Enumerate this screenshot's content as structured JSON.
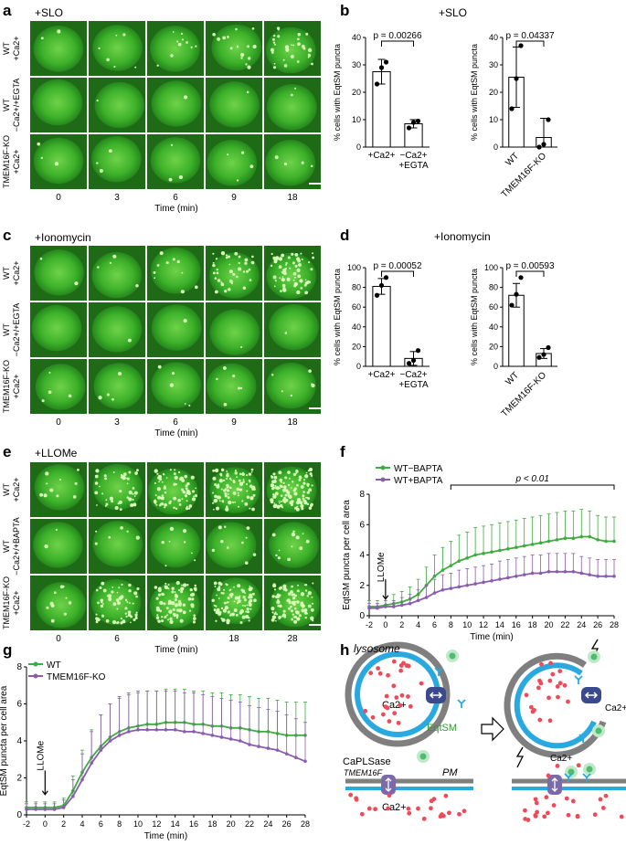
{
  "panels": {
    "a": {
      "letter": "a",
      "condition": "+SLO",
      "rows": [
        "WT\n+Ca2+",
        "WT\n−Ca2+/+EGTA",
        "TMEM16F-KO\n+Ca2+"
      ],
      "timepoints": [
        "0",
        "3",
        "6",
        "9",
        "18"
      ],
      "xlabel": "Time (min)"
    },
    "b": {
      "letter": "b",
      "condition": "+SLO"
    },
    "c": {
      "letter": "c",
      "condition": "+Ionomycin",
      "rows": [
        "WT\n+Ca2+",
        "WT\n−Ca2+/+EGTA",
        "TMEM16F-KO\n+Ca2+"
      ],
      "timepoints": [
        "0",
        "3",
        "6",
        "9",
        "18"
      ],
      "xlabel": "Time (min)"
    },
    "d": {
      "letter": "d",
      "condition": "+Ionomycin"
    },
    "e": {
      "letter": "e",
      "condition": "+LLOMe",
      "rows": [
        "WT\n+Ca2+",
        "WT\n−Ca2+/+BAPTA",
        "TMEM16F-KO\n+Ca2+"
      ],
      "timepoints": [
        "0",
        "6",
        "9",
        "18",
        "28"
      ],
      "xlabel": "Time (min)"
    },
    "f": {
      "letter": "f"
    },
    "g": {
      "letter": "g"
    },
    "h": {
      "letter": "h",
      "lysosome": "lysosome",
      "ca": "Ca2+",
      "eqtsm": "EqtSM",
      "caplsase": "CaPLSase",
      "tmem16f": "TMEM16F",
      "pm": "PM"
    }
  },
  "chart_data": [
    {
      "id": "b-left",
      "type": "bar",
      "ylabel": "% cells with EqtSM puncta",
      "categories": [
        "+Ca2+",
        "−Ca2+\n+EGTA"
      ],
      "values": [
        27.5,
        8.5
      ],
      "errors": [
        4.5,
        1.5
      ],
      "points": [
        [
          23,
          29,
          31
        ],
        [
          7,
          9,
          9.5
        ]
      ],
      "ylim": [
        0,
        40
      ],
      "yticks": [
        0,
        10,
        20,
        30,
        40
      ],
      "pvalue": "p = 0.00266"
    },
    {
      "id": "b-right",
      "type": "bar",
      "ylabel": "% cells with EqtSM puncta",
      "categories": [
        "WT",
        "TMEM16F-KO"
      ],
      "values": [
        25.5,
        3.5
      ],
      "errors": [
        11,
        7
      ],
      "points": [
        [
          14,
          25,
          37
        ],
        [
          0,
          1,
          10
        ]
      ],
      "ylim": [
        0,
        40
      ],
      "yticks": [
        0,
        10,
        20,
        30,
        40
      ],
      "pvalue": "p = 0.04337"
    },
    {
      "id": "d-left",
      "type": "bar",
      "ylabel": "% cells with EqtSM puncta",
      "categories": [
        "+Ca2+",
        "−Ca2+\n+EGTA"
      ],
      "values": [
        81,
        8
      ],
      "errors": [
        8,
        7
      ],
      "points": [
        [
          72,
          82,
          90
        ],
        [
          3,
          6,
          16
        ]
      ],
      "ylim": [
        0,
        100
      ],
      "yticks": [
        0,
        20,
        40,
        60,
        80,
        100
      ],
      "pvalue": "p = 0.00052"
    },
    {
      "id": "d-right",
      "type": "bar",
      "ylabel": "% cells with EqtSM puncta",
      "categories": [
        "WT",
        "TMEM16F-KO"
      ],
      "values": [
        72,
        13
      ],
      "errors": [
        12,
        5
      ],
      "points": [
        [
          62,
          73,
          90
        ],
        [
          9,
          12,
          19
        ]
      ],
      "ylim": [
        0,
        100
      ],
      "yticks": [
        0,
        20,
        40,
        60,
        80,
        100
      ],
      "pvalue": "p = 0.00593"
    },
    {
      "id": "f",
      "type": "line",
      "xlabel": "Time (min)",
      "ylabel": "EqtSM puncta per cell area",
      "xlim": [
        -2,
        28
      ],
      "ylim": [
        0,
        8
      ],
      "xticks": [
        -2,
        0,
        2,
        4,
        6,
        8,
        10,
        12,
        14,
        16,
        18,
        20,
        22,
        24,
        26,
        28
      ],
      "yticks": [
        0,
        2,
        4,
        6,
        8
      ],
      "annotation": "LLOMe",
      "sig": "p < 0.01",
      "sig_range": [
        8,
        28
      ],
      "series": [
        {
          "name": "WT−BAPTA",
          "color": "#3faa3f",
          "x": [
            -2,
            -1,
            0,
            1,
            2,
            3,
            4,
            5,
            6,
            7,
            8,
            9,
            10,
            11,
            12,
            13,
            14,
            15,
            16,
            17,
            18,
            19,
            20,
            21,
            22,
            23,
            24,
            25,
            26,
            27,
            28
          ],
          "y": [
            0.6,
            0.6,
            0.7,
            0.8,
            0.9,
            1.1,
            1.4,
            2.0,
            2.6,
            3.0,
            3.3,
            3.6,
            3.8,
            4.0,
            4.1,
            4.2,
            4.3,
            4.4,
            4.5,
            4.6,
            4.7,
            4.8,
            4.9,
            5.0,
            5.1,
            5.1,
            5.2,
            5.2,
            5.0,
            4.9,
            4.9
          ],
          "err": [
            0.4,
            0.4,
            0.5,
            0.6,
            0.7,
            0.8,
            1.0,
            1.2,
            1.4,
            1.5,
            1.6,
            1.7,
            1.7,
            1.8,
            1.8,
            1.8,
            1.8,
            1.8,
            1.8,
            1.8,
            1.8,
            1.8,
            1.8,
            1.8,
            1.8,
            1.8,
            1.8,
            1.7,
            1.6,
            1.6,
            1.6
          ]
        },
        {
          "name": "WT+BAPTA",
          "color": "#8a5cb0",
          "x": [
            -2,
            -1,
            0,
            1,
            2,
            3,
            4,
            5,
            6,
            7,
            8,
            9,
            10,
            11,
            12,
            13,
            14,
            15,
            16,
            17,
            18,
            19,
            20,
            21,
            22,
            23,
            24,
            25,
            26,
            27,
            28
          ],
          "y": [
            0.5,
            0.5,
            0.6,
            0.6,
            0.7,
            0.8,
            1.0,
            1.2,
            1.5,
            1.7,
            1.8,
            1.9,
            2.0,
            2.1,
            2.2,
            2.3,
            2.4,
            2.5,
            2.6,
            2.7,
            2.8,
            2.8,
            2.9,
            2.9,
            2.9,
            2.9,
            2.8,
            2.7,
            2.6,
            2.6,
            2.6
          ],
          "err": [
            0.3,
            0.3,
            0.4,
            0.4,
            0.5,
            0.6,
            0.7,
            0.8,
            0.9,
            1.0,
            1.0,
            1.1,
            1.1,
            1.1,
            1.1,
            1.1,
            1.2,
            1.2,
            1.2,
            1.2,
            1.2,
            1.2,
            1.2,
            1.2,
            1.2,
            1.2,
            1.1,
            1.1,
            1.1,
            1.1,
            1.1
          ]
        }
      ]
    },
    {
      "id": "g",
      "type": "line",
      "xlabel": "Time (min)",
      "ylabel": "EqtSM puncta per cell area",
      "xlim": [
        -2,
        28
      ],
      "ylim": [
        0,
        8
      ],
      "xticks": [
        -2,
        0,
        2,
        4,
        6,
        8,
        10,
        12,
        14,
        16,
        18,
        20,
        22,
        24,
        26,
        28
      ],
      "yticks": [
        0,
        2,
        4,
        6,
        8
      ],
      "annotation": "LLOMe",
      "series": [
        {
          "name": "WT",
          "color": "#3faa3f",
          "x": [
            -2,
            -1,
            0,
            1,
            2,
            3,
            4,
            5,
            6,
            7,
            8,
            9,
            10,
            11,
            12,
            13,
            14,
            15,
            16,
            17,
            18,
            19,
            20,
            21,
            22,
            23,
            24,
            25,
            26,
            27,
            28
          ],
          "y": [
            0.4,
            0.4,
            0.4,
            0.4,
            0.5,
            1.3,
            2.3,
            3.1,
            3.7,
            4.2,
            4.5,
            4.7,
            4.8,
            4.9,
            4.9,
            5.0,
            5.0,
            5.0,
            4.9,
            4.9,
            4.8,
            4.8,
            4.7,
            4.7,
            4.6,
            4.5,
            4.5,
            4.4,
            4.3,
            4.3,
            4.3
          ],
          "err": [
            0.3,
            0.3,
            0.3,
            0.3,
            0.4,
            0.8,
            1.2,
            1.5,
            1.7,
            1.8,
            1.8,
            1.8,
            1.8,
            1.8,
            1.8,
            1.8,
            1.8,
            1.8,
            1.8,
            1.8,
            1.8,
            1.8,
            1.8,
            1.8,
            1.8,
            1.8,
            1.8,
            1.8,
            1.8,
            1.8,
            1.8
          ]
        },
        {
          "name": "TMEM16F-KO",
          "color": "#8a5cb0",
          "x": [
            -2,
            -1,
            0,
            1,
            2,
            3,
            4,
            5,
            6,
            7,
            8,
            9,
            10,
            11,
            12,
            13,
            14,
            15,
            16,
            17,
            18,
            19,
            20,
            21,
            22,
            23,
            24,
            25,
            26,
            27,
            28
          ],
          "y": [
            0.3,
            0.3,
            0.3,
            0.3,
            0.4,
            1.0,
            1.9,
            2.8,
            3.5,
            4.0,
            4.3,
            4.5,
            4.6,
            4.6,
            4.6,
            4.6,
            4.6,
            4.5,
            4.5,
            4.4,
            4.3,
            4.2,
            4.1,
            4.0,
            3.8,
            3.7,
            3.6,
            3.5,
            3.3,
            3.1,
            2.9
          ],
          "err": [
            0.3,
            0.3,
            0.3,
            0.3,
            0.4,
            0.9,
            1.4,
            1.7,
            1.9,
            2.0,
            2.1,
            2.1,
            2.1,
            2.1,
            2.1,
            2.1,
            2.1,
            2.1,
            2.1,
            2.1,
            2.1,
            2.1,
            2.1,
            2.1,
            2.1,
            2.1,
            2.1,
            2.1,
            2.1,
            2.1,
            2.1
          ]
        }
      ]
    }
  ]
}
